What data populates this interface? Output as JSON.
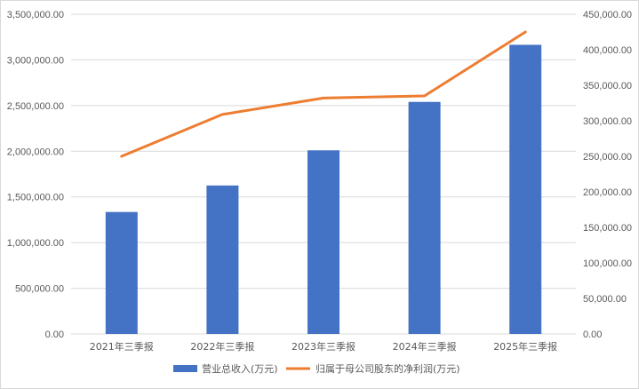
{
  "chart_data": {
    "type": "bar+line",
    "categories": [
      "2021年三季报",
      "2022年三季报",
      "2023年三季报",
      "2024年三季报",
      "2025年三季报"
    ],
    "series": [
      {
        "name": "营业总收入(万元)",
        "type": "bar",
        "axis": "left",
        "color": "#4472C4",
        "values": [
          1335000,
          1625000,
          2010000,
          2540000,
          3165000
        ]
      },
      {
        "name": "归属于母公司股东的净利润(万元)",
        "type": "line",
        "axis": "right",
        "color": "#ED7D31",
        "values": [
          250000,
          309000,
          332000,
          335000,
          425000
        ]
      }
    ],
    "y_left": {
      "min": 0,
      "max": 3500000,
      "step": 500000,
      "tick_labels": [
        "0.00",
        "500,000.00",
        "1,000,000.00",
        "1,500,000.00",
        "2,000,000.00",
        "2,500,000.00",
        "3,000,000.00",
        "3,500,000.00"
      ]
    },
    "y_right": {
      "min": 0,
      "max": 450000,
      "step": 50000,
      "tick_labels": [
        "0.00",
        "50,000.00",
        "100,000.00",
        "150,000.00",
        "200,000.00",
        "250,000.00",
        "300,000.00",
        "350,000.00",
        "400,000.00",
        "450,000.00"
      ]
    },
    "grid": true,
    "legend_position": "bottom"
  }
}
